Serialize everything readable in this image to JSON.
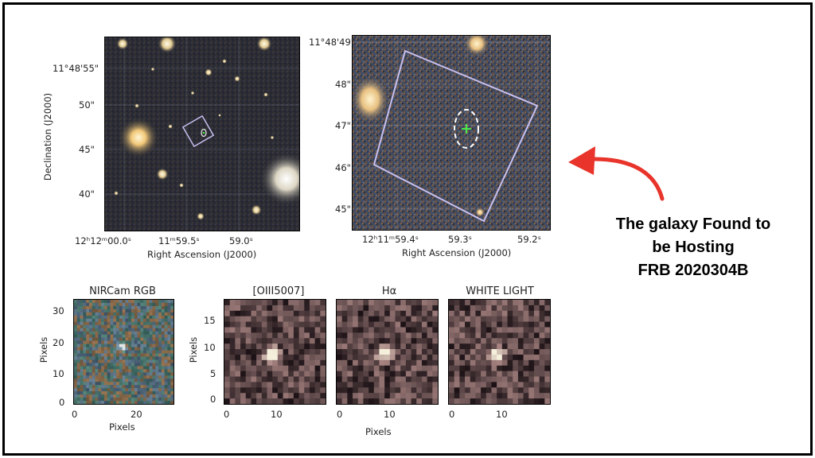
{
  "panel_large": {
    "y_ticks": [
      "11°48'55\"",
      "50\"",
      "45\"",
      "40\""
    ],
    "x_ticks": [
      "12ʰ12ᵐ00.0ˢ",
      "11ᵐ59.5ˢ",
      "59.0ˢ"
    ],
    "x_label": "Right Ascension (J2000)",
    "y_label": "Declination (J2000)"
  },
  "panel_zoom": {
    "y_ticks": [
      "11°48'49\"",
      "48\"",
      "47\"",
      "46\"",
      "45\""
    ],
    "x_ticks": [
      "12ʰ11ᵐ59.4ˢ",
      "59.3ˢ",
      "59.2ˢ"
    ],
    "x_label": "Right Ascension (J2000)"
  },
  "caption": {
    "line1": "The galaxy Found to",
    "line2": "be Hosting",
    "line3": "FRB 2020304B"
  },
  "cutouts": {
    "rgb": {
      "title": "NIRCam RGB",
      "y_ticks": [
        "30",
        "20",
        "10",
        "0"
      ],
      "x_ticks": [
        "0",
        "20"
      ],
      "x_label": "Pixels",
      "y_label": "Pixels"
    },
    "line_maps": {
      "titles": [
        "[OIII5007]",
        "Hα",
        "WHITE LIGHT"
      ],
      "y_ticks": [
        "15",
        "10",
        "5",
        "0"
      ],
      "x_ticks": [
        "0",
        "10"
      ],
      "x_label": "Pixels",
      "y_label": "Pixels"
    }
  },
  "colors": {
    "arrow": "#e8342a",
    "region_box": "#c8c0f0",
    "host_marker": "#49e84a"
  }
}
